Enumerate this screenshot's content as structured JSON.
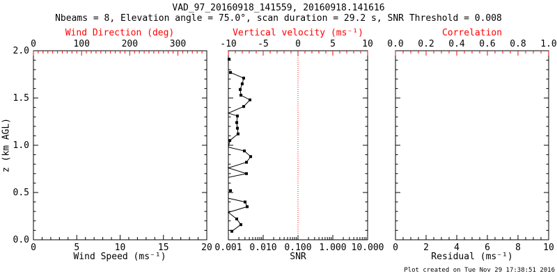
{
  "header": {
    "title": "VAD_97_20160918_141559, 20160918.141616",
    "subtitle": "Nbeams = 8, Elevation angle = 75.0°, scan duration = 29.2 s, SNR Threshold = 0.008"
  },
  "footer": {
    "note": "Plot created on Tue Nov 29 17:38:51 2016"
  },
  "colors": {
    "primary_axis": "#000000",
    "secondary_axis": "#ff0000",
    "background": "#ffffff",
    "profile": "#000000",
    "reference_line": "#ff0000"
  },
  "chart_data": {
    "type": "line",
    "title": "VAD_97_20160918_141559, 20160918.141616",
    "subtitle": "Nbeams = 8, Elevation angle = 75.0°, scan duration = 29.2 s, SNR Threshold = 0.008",
    "grid": false,
    "y_axis": {
      "label": "z (km AGL)",
      "range": [
        0.0,
        2.0
      ],
      "major_ticks": [
        0.0,
        0.5,
        1.0,
        1.5,
        2.0
      ],
      "tick_labels": [
        "0.0",
        "0.5",
        "1.0",
        "1.5",
        "2.0"
      ],
      "minor_step": 0.1
    },
    "panels": [
      {
        "name": "wind",
        "bottom_axis": {
          "label": "Wind Speed (ms⁻¹)",
          "scale": "linear",
          "range": [
            0,
            20
          ],
          "major_ticks": [
            0,
            5,
            10,
            15,
            20
          ],
          "tick_labels": [
            "0",
            "5",
            "10",
            "15",
            "20"
          ],
          "minor_step": 1,
          "color": "#000000"
        },
        "top_axis": {
          "label": "Wind Direction (deg)",
          "scale": "linear",
          "range": [
            0,
            360
          ],
          "major_ticks": [
            0,
            100,
            200,
            300
          ],
          "tick_labels": [
            "0",
            "100",
            "200",
            "300"
          ],
          "minor_step": 10,
          "color": "#ff0000"
        },
        "series": []
      },
      {
        "name": "snr",
        "bottom_axis": {
          "label": "SNR",
          "scale": "log",
          "range": [
            0.001,
            10
          ],
          "major_ticks": [
            0.001,
            0.01,
            0.1,
            1,
            10
          ],
          "tick_labels": [
            "0.001",
            "0.010",
            "0.100",
            "1.000",
            "10.000"
          ],
          "color": "#000000"
        },
        "top_axis": {
          "label": "Vertical velocity (ms⁻¹)",
          "scale": "linear",
          "range": [
            -10,
            10
          ],
          "major_ticks": [
            -10,
            -5,
            0,
            5,
            10
          ],
          "tick_labels": [
            "-10",
            "-5",
            "0",
            "5",
            "10"
          ],
          "minor_step": 1,
          "color": "#ff0000"
        },
        "reference_line_snr": 0.1,
        "series": [
          {
            "name": "snr_profile",
            "marker_points_snr_z": [
              [
                0.00105,
                1.91
              ],
              [
                0.00115,
                1.77
              ],
              [
                0.00275,
                1.71
              ],
              [
                0.0025,
                1.65
              ],
              [
                0.00219,
                1.59
              ],
              [
                0.00229,
                1.53
              ],
              [
                0.00417,
                1.48
              ],
              [
                0.00275,
                1.41
              ],
              [
                0.00182,
                1.31
              ],
              [
                0.00174,
                1.24
              ],
              [
                0.00182,
                1.18
              ],
              [
                0.0019,
                1.12
              ],
              [
                0.0011,
                1.05
              ],
              [
                0.00288,
                0.94
              ],
              [
                0.00437,
                0.88
              ],
              [
                0.00331,
                0.82
              ],
              [
                0.00331,
                0.7
              ],
              [
                0.00115,
                0.52
              ],
              [
                0.00302,
                0.4
              ],
              [
                0.00347,
                0.35
              ],
              [
                0.00174,
                0.22
              ],
              [
                0.00229,
                0.16
              ],
              [
                0.00126,
                0.09
              ]
            ],
            "line_segments_snr_z": [
              [
                [
                  0.00115,
                  1.77
                ],
                [
                  0.00275,
                  1.71
                ],
                [
                  0.0025,
                  1.65
                ],
                [
                  0.00219,
                  1.59
                ],
                [
                  0.00229,
                  1.53
                ],
                [
                  0.00417,
                  1.48
                ],
                [
                  0.00275,
                  1.41
                ],
                [
                  0.001,
                  1.34
                ],
                [
                  0.00182,
                  1.31
                ],
                [
                  0.00174,
                  1.24
                ],
                [
                  0.00182,
                  1.18
                ],
                [
                  0.0019,
                  1.12
                ],
                [
                  0.0011,
                  1.05
                ],
                [
                  0.001,
                  0.98
                ],
                [
                  0.00288,
                  0.94
                ],
                [
                  0.00437,
                  0.88
                ],
                [
                  0.00331,
                  0.82
                ],
                [
                  0.001,
                  0.76
                ],
                [
                  0.00331,
                  0.7
                ],
                [
                  0.001,
                  0.66
                ]
              ],
              [
                [
                  0.001,
                  0.44
                ],
                [
                  0.00302,
                  0.4
                ],
                [
                  0.00347,
                  0.35
                ],
                [
                  0.001,
                  0.29
                ],
                [
                  0.00174,
                  0.22
                ],
                [
                  0.00229,
                  0.16
                ],
                [
                  0.00126,
                  0.09
                ]
              ]
            ]
          }
        ]
      },
      {
        "name": "residual",
        "bottom_axis": {
          "label": "Residual (ms⁻¹)",
          "scale": "linear",
          "range": [
            0,
            10
          ],
          "major_ticks": [
            0,
            2,
            4,
            6,
            8,
            10
          ],
          "tick_labels": [
            "0",
            "2",
            "4",
            "6",
            "8",
            "10"
          ],
          "minor_step": 0.5,
          "color": "#000000"
        },
        "top_axis": {
          "label": "Correlation",
          "scale": "linear",
          "range": [
            0,
            1
          ],
          "major_ticks": [
            0,
            0.2,
            0.4,
            0.6,
            0.8,
            1.0
          ],
          "tick_labels": [
            "0.0",
            "0.2",
            "0.4",
            "0.6",
            "0.8",
            "1.0"
          ],
          "minor_step": 0.05,
          "color": "#ff0000"
        },
        "series": []
      }
    ]
  }
}
